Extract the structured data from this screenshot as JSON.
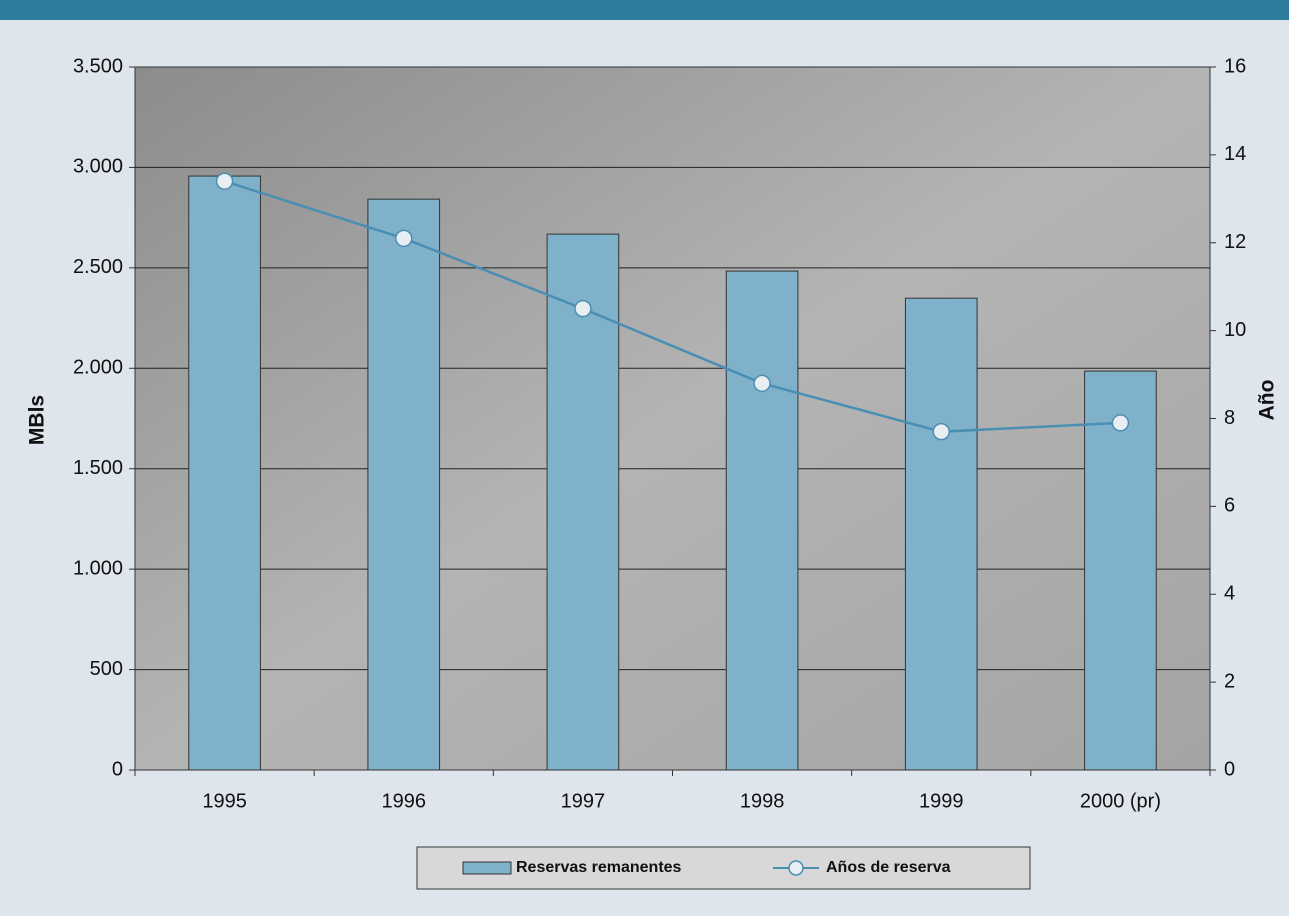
{
  "chart_data": {
    "type": "bar",
    "categories": [
      "1995",
      "1996",
      "1997",
      "1998",
      "1999",
      "2000 (pr)"
    ],
    "y_label": "MBls",
    "y2_label": "Año",
    "ylim": [
      0,
      3500
    ],
    "yticks": [
      0,
      500,
      {
        "value": 1000,
        "label": "1.000"
      },
      {
        "value": 1500,
        "label": "1.500"
      },
      {
        "value": 2000,
        "label": "2.000"
      },
      {
        "value": 2500,
        "label": "2.500"
      },
      {
        "value": 3000,
        "label": "3.000"
      },
      {
        "value": 3500,
        "label": "3.500"
      }
    ],
    "y2lim": [
      0,
      16
    ],
    "y2ticks": [
      0,
      2,
      4,
      6,
      8,
      10,
      12,
      14,
      16
    ],
    "grid": true,
    "series": [
      {
        "name": "Reservas remanentes",
        "type": "bar",
        "color": "#7fb2ca",
        "values": [
          2957,
          2842,
          2668,
          2484,
          2349,
          1986
        ]
      },
      {
        "name": "Años de reserva",
        "type": "line",
        "axis": "y2",
        "color": "#4a8fb3",
        "values": [
          13.4,
          12.1,
          10.5,
          8.8,
          7.7,
          7.9
        ]
      }
    ]
  }
}
